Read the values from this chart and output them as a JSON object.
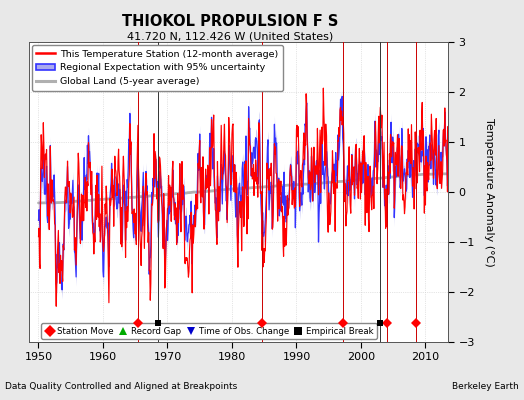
{
  "title": "THIOKOL PROPULSION F S",
  "subtitle": "41.720 N, 112.426 W (United States)",
  "xlabel_bottom": "Data Quality Controlled and Aligned at Breakpoints",
  "xlabel_right": "Berkeley Earth",
  "ylabel": "Temperature Anomaly (°C)",
  "xlim": [
    1948.5,
    2013.5
  ],
  "ylim": [
    -3,
    3
  ],
  "yticks": [
    -3,
    -2,
    -1,
    0,
    1,
    2,
    3
  ],
  "xticks": [
    1950,
    1960,
    1970,
    1980,
    1990,
    2000,
    2010
  ],
  "bg_color": "#e8e8e8",
  "plot_bg_color": "#ffffff",
  "station_color": "#ff0000",
  "regional_line_color": "#3333ff",
  "regional_fill_color": "#aaaaee",
  "global_color": "#b0b0b0",
  "station_move_times": [
    1965.5,
    1984.7,
    1997.2,
    2004.0,
    2008.5
  ],
  "empirical_break_times": [
    1968.5,
    2003.0
  ],
  "legend_line_entries": [
    "This Temperature Station (12-month average)",
    "Regional Expectation with 95% uncertainty",
    "Global Land (5-year average)"
  ],
  "bottom_legend_entries": [
    "Station Move",
    "Record Gap",
    "Time of Obs. Change",
    "Empirical Break"
  ]
}
